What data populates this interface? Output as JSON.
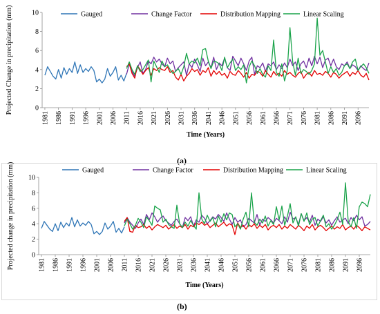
{
  "chart_data": [
    {
      "type": "line",
      "panel_label": "(a)",
      "xlabel": "Time (Years)",
      "ylabel": "Projected Change in precipitation (mm)",
      "ylim": [
        0,
        10
      ],
      "yticks": [
        0,
        2,
        4,
        6,
        8,
        10
      ],
      "xlim": [
        1980,
        2100
      ],
      "xticks": [
        1981,
        1986,
        1991,
        1996,
        2001,
        2006,
        2011,
        2016,
        2021,
        2026,
        2031,
        2036,
        2041,
        2046,
        2051,
        2056,
        2061,
        2066,
        2071,
        2076,
        2081,
        2086,
        2091,
        2096
      ],
      "legend_position": "top",
      "series": [
        {
          "name": "Gauged",
          "color": "#2e75b6",
          "x_start": 1981,
          "values": [
            3.4,
            4.3,
            3.8,
            3.3,
            3.0,
            4.0,
            3.1,
            4.2,
            3.5,
            4.1,
            3.7,
            4.8,
            3.6,
            4.5,
            3.7,
            4.1,
            3.8,
            4.3,
            3.9,
            2.7,
            3.0,
            2.6,
            3.0,
            4.1,
            3.3,
            3.7,
            4.3,
            2.9,
            3.4,
            2.8,
            3.6
          ]
        },
        {
          "name": "Change Factor",
          "color": "#7030a0",
          "x_start": 2011,
          "values": [
            3.5,
            4.6,
            3.8,
            3.3,
            4.2,
            4.8,
            3.6,
            4.0,
            4.9,
            4.6,
            5.3,
            4.8,
            5.1,
            4.6,
            4.3,
            5.2,
            4.6,
            4.9,
            3.8,
            4.2,
            4.5,
            4.8,
            3.4,
            4.6,
            4.2,
            5.1,
            4.5,
            3.8,
            5.2,
            4.4,
            4.8,
            4.2,
            5.3,
            4.0,
            4.7,
            4.4,
            5.2,
            4.2,
            3.9,
            5.4,
            4.9,
            4.4,
            5.2,
            4.6,
            3.9,
            4.9,
            5.3,
            3.5,
            4.4,
            4.2,
            4.7,
            3.8,
            4.6,
            4.4,
            4.8,
            4.0,
            4.5,
            4.1,
            4.7,
            4.2,
            5.1,
            4.4,
            4.8,
            3.9,
            4.6,
            4.9,
            4.2,
            5.2,
            4.4,
            5.4,
            4.6,
            5.3,
            4.2,
            5.0,
            5.2,
            4.4,
            5.1,
            4.3,
            4.0,
            4.6,
            4.4,
            4.8,
            4.1,
            4.5,
            4.3,
            3.9,
            4.4,
            4.1,
            3.9,
            4.7
          ]
        },
        {
          "name": "Distribution Mapping",
          "color": "#e30000",
          "x_start": 2011,
          "values": [
            4.3,
            4.6,
            3.6,
            3.1,
            4.4,
            4.0,
            3.5,
            3.9,
            4.2,
            3.4,
            4.1,
            3.9,
            4.2,
            4.0,
            3.9,
            4.3,
            3.7,
            3.9,
            3.2,
            2.9,
            3.5,
            2.8,
            3.3,
            3.6,
            4.1,
            3.8,
            4.0,
            3.4,
            3.9,
            3.7,
            4.2,
            3.3,
            3.9,
            3.5,
            3.8,
            3.4,
            3.6,
            3.1,
            3.8,
            3.5,
            3.4,
            3.9,
            3.6,
            3.2,
            3.7,
            3.1,
            3.5,
            3.4,
            3.8,
            3.7,
            3.3,
            3.9,
            3.5,
            3.2,
            3.8,
            3.4,
            3.6,
            3.3,
            3.9,
            3.5,
            3.7,
            3.4,
            3.2,
            3.6,
            3.8,
            3.1,
            3.5,
            3.7,
            3.3,
            3.9,
            3.5,
            3.6,
            3.4,
            3.8,
            3.6,
            3.2,
            3.7,
            3.5,
            3.1,
            3.4,
            3.6,
            3.8,
            3.3,
            3.7,
            3.5,
            3.9,
            3.4,
            3.2,
            3.6,
            2.9
          ]
        },
        {
          "name": "Linear Scaling",
          "color": "#1aa34a",
          "x_start": 2011,
          "values": [
            4.1,
            4.8,
            4.0,
            3.5,
            4.4,
            3.8,
            4.0,
            4.5,
            5.0,
            2.7,
            4.9,
            4.3,
            3.7,
            4.9,
            4.3,
            4.5,
            4.0,
            3.6,
            3.8,
            4.1,
            3.5,
            4.3,
            5.7,
            4.6,
            4.9,
            4.7,
            5.2,
            4.4,
            6.1,
            6.2,
            4.9,
            4.1,
            4.9,
            4.8,
            4.6,
            3.9,
            5.3,
            4.2,
            4.7,
            5.1,
            3.9,
            4.3,
            4.0,
            4.5,
            2.6,
            4.3,
            4.9,
            4.4,
            3.6,
            4.1,
            3.5,
            3.2,
            4.4,
            3.9,
            7.1,
            3.7,
            3.3,
            4.6,
            2.8,
            3.9,
            8.4,
            4.8,
            3.4,
            5.2,
            3.6,
            4.0,
            3.8,
            3.5,
            3.9,
            4.6,
            9.4,
            5.5,
            6.0,
            4.8,
            3.6,
            4.3,
            3.7,
            4.1,
            3.4,
            3.7,
            4.4,
            4.6,
            4.1,
            4.8,
            5.1,
            3.9,
            4.3,
            4.6,
            4.2,
            3.6
          ]
        }
      ]
    },
    {
      "type": "line",
      "panel_label": "(b)",
      "xlabel": "Time (Years)",
      "ylabel": "Projected change in precipitation (mm)",
      "ylim": [
        0,
        10
      ],
      "yticks": [
        0,
        2,
        4,
        6,
        8,
        10
      ],
      "xlim": [
        1980,
        2100
      ],
      "xticks": [
        1981,
        1986,
        1991,
        1996,
        2001,
        2006,
        2011,
        2016,
        2021,
        2026,
        2031,
        2036,
        2041,
        2046,
        2051,
        2056,
        2061,
        2066,
        2071,
        2076,
        2081,
        2086,
        2091,
        2096
      ],
      "legend_position": "top",
      "series": [
        {
          "name": "Gauged",
          "color": "#2e75b6",
          "x_start": 1981,
          "values": [
            3.4,
            4.3,
            3.8,
            3.3,
            3.0,
            4.0,
            3.1,
            4.2,
            3.5,
            4.1,
            3.7,
            4.8,
            3.6,
            4.5,
            3.7,
            4.1,
            3.8,
            4.3,
            3.9,
            2.7,
            3.0,
            2.6,
            3.0,
            4.1,
            3.3,
            3.7,
            4.3,
            2.9,
            3.4,
            2.8,
            3.6
          ]
        },
        {
          "name": "Change Factor",
          "color": "#7030a0",
          "x_start": 2011,
          "values": [
            4.1,
            4.8,
            4.2,
            3.8,
            3.4,
            4.1,
            4.6,
            3.9,
            5.2,
            4.5,
            5.4,
            4.9,
            4.2,
            4.7,
            5.0,
            4.4,
            4.1,
            3.8,
            4.3,
            4.6,
            4.0,
            3.5,
            4.8,
            4.4,
            4.9,
            3.7,
            4.5,
            4.2,
            5.1,
            4.7,
            4.0,
            4.4,
            4.9,
            4.6,
            5.2,
            4.8,
            4.3,
            5.4,
            4.6,
            3.9,
            4.8,
            4.2,
            4.5,
            3.6,
            3.9,
            4.7,
            4.4,
            4.1,
            5.2,
            3.8,
            4.6,
            4.3,
            4.8,
            4.5,
            4.1,
            4.7,
            4.4,
            4.0,
            4.9,
            4.2,
            5.5,
            4.6,
            4.8,
            3.9,
            5.3,
            4.4,
            4.8,
            4.2,
            5.1,
            3.8,
            4.6,
            4.3,
            4.9,
            4.1,
            4.5,
            3.8,
            4.4,
            4.9,
            4.2,
            4.5,
            4.7,
            4.0,
            4.8,
            4.4,
            5.1,
            4.5,
            4.9,
            3.7,
            3.9,
            4.3
          ]
        },
        {
          "name": "Distribution Mapping",
          "color": "#e30000",
          "x_start": 2011,
          "values": [
            4.3,
            4.8,
            3.0,
            2.9,
            3.8,
            3.5,
            3.6,
            3.9,
            3.4,
            3.7,
            3.2,
            3.6,
            3.9,
            3.7,
            3.5,
            3.8,
            3.3,
            3.6,
            3.9,
            3.4,
            3.7,
            3.5,
            3.9,
            3.3,
            3.8,
            3.6,
            4.1,
            3.9,
            4.2,
            3.8,
            4.0,
            3.5,
            3.8,
            4.1,
            3.6,
            3.9,
            4.2,
            3.7,
            4.0,
            3.8,
            2.6,
            4.1,
            3.5,
            3.8,
            3.3,
            3.9,
            3.6,
            4.0,
            3.4,
            3.8,
            3.5,
            3.9,
            3.2,
            3.6,
            3.8,
            3.5,
            3.9,
            3.3,
            3.7,
            3.4,
            3.9,
            3.6,
            3.3,
            3.8,
            3.5,
            3.1,
            3.7,
            3.4,
            3.9,
            3.2,
            3.6,
            3.8,
            3.5,
            3.1,
            3.4,
            3.7,
            3.3,
            3.6,
            3.4,
            3.9,
            3.2,
            3.5,
            3.7,
            3.3,
            3.8,
            3.5,
            3.1,
            3.6,
            3.4,
            3.2
          ]
        },
        {
          "name": "Linear Scaling",
          "color": "#1aa34a",
          "x_start": 2011,
          "values": [
            3.7,
            4.6,
            4.0,
            3.3,
            3.8,
            4.7,
            4.2,
            3.5,
            4.9,
            4.4,
            3.8,
            6.3,
            6.0,
            5.8,
            4.2,
            4.6,
            3.9,
            3.6,
            3.4,
            6.4,
            4.0,
            3.5,
            4.2,
            3.7,
            4.4,
            3.8,
            3.3,
            8.0,
            4.6,
            4.0,
            5.1,
            4.3,
            4.8,
            3.6,
            5.0,
            4.2,
            5.3,
            4.5,
            5.4,
            5.2,
            3.6,
            4.0,
            3.3,
            4.6,
            5.5,
            3.6,
            8.0,
            4.2,
            3.8,
            4.6,
            4.1,
            5.0,
            3.7,
            4.4,
            3.9,
            6.2,
            4.5,
            6.3,
            3.8,
            5.0,
            6.6,
            4.1,
            4.9,
            3.7,
            5.3,
            4.3,
            5.4,
            3.9,
            4.6,
            4.8,
            3.7,
            4.4,
            5.1,
            3.6,
            4.0,
            3.3,
            3.8,
            4.5,
            5.5,
            3.9,
            9.3,
            4.3,
            3.6,
            4.8,
            3.4,
            6.2,
            6.8,
            6.6,
            6.2,
            7.8
          ]
        }
      ]
    }
  ]
}
